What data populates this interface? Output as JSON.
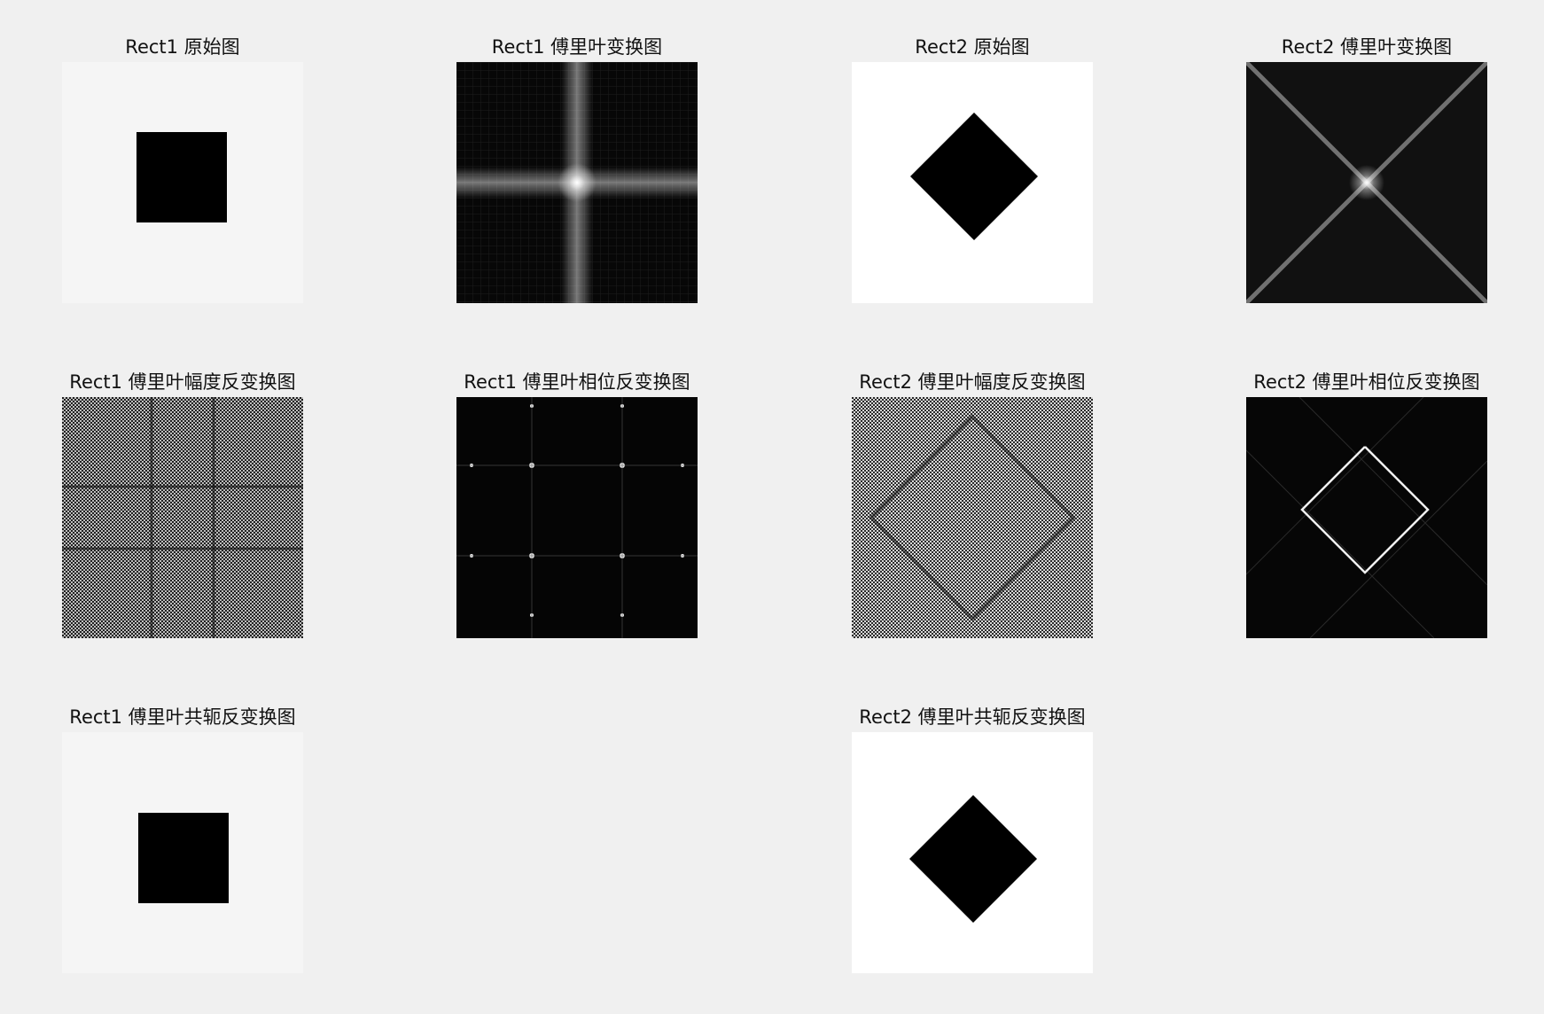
{
  "panels": {
    "rect1_original": {
      "title": "Rect1 原始图"
    },
    "rect1_fft": {
      "title": "Rect1 傅里叶变换图"
    },
    "rect2_original": {
      "title": "Rect2 原始图"
    },
    "rect2_fft": {
      "title": "Rect2 傅里叶变换图"
    },
    "rect1_mag_inv": {
      "title": "Rect1 傅里叶幅度反变换图"
    },
    "rect1_phase_inv": {
      "title": "Rect1 傅里叶相位反变换图"
    },
    "rect2_mag_inv": {
      "title": "Rect2 傅里叶幅度反变换图"
    },
    "rect2_phase_inv": {
      "title": "Rect2 傅里叶相位反变换图"
    },
    "rect1_conj_inv": {
      "title": "Rect1 傅里叶共轭反变换图"
    },
    "rect2_conj_inv": {
      "title": "Rect2 傅里叶共轭反变换图"
    }
  },
  "colors": {
    "figure_bg": "#f0f0f0",
    "light_bg": "#f5f5f5",
    "white_bg": "#ffffff",
    "shape": "#000000"
  }
}
